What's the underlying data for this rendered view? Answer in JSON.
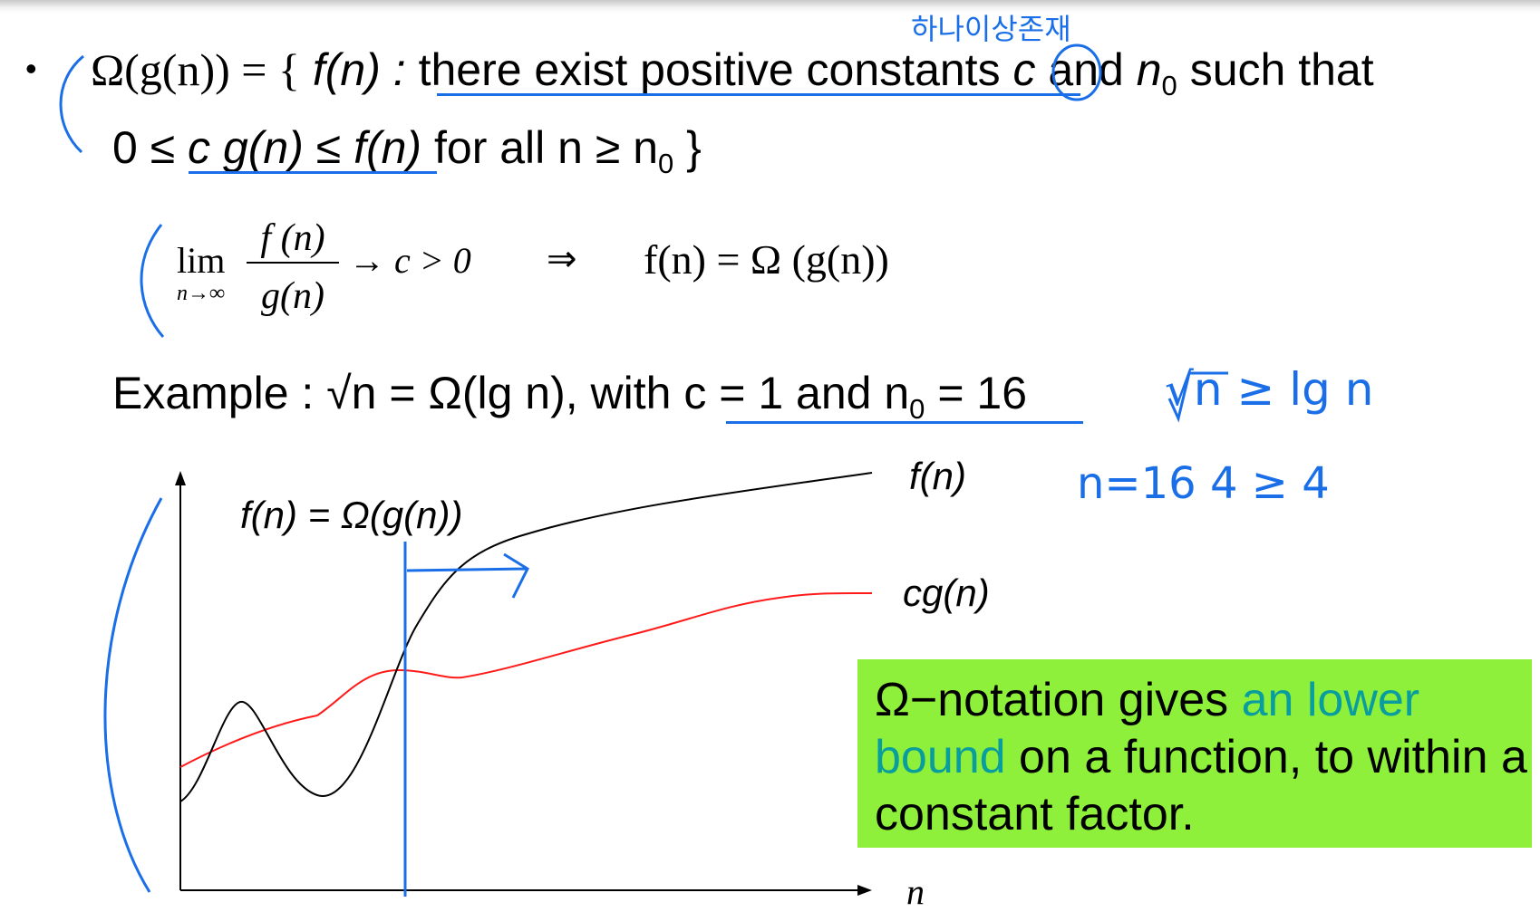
{
  "definition": {
    "bullet": "•",
    "omega_lhs": "Ω(g(n)) = {",
    "f_of_n": "f(n) :",
    "underlined_phrase": "there exist positive constants",
    "constant_c": "c",
    "and_text": "and",
    "n0_var": "n",
    "n0_sub": "0",
    "such_that": "such that",
    "line2_start": "0 ≤",
    "line2_inequality": "c g(n) ≤ f(n)",
    "line2_rest": "for all n ≥ n",
    "line2_sub": "0",
    "line2_end": "}"
  },
  "limit": {
    "lim": "lim",
    "lim_sub": "n→∞",
    "numerator": "f (n)",
    "denominator": "g(n)",
    "arrow_c": "→  c > 0",
    "implies": "⇒",
    "result": "f(n) = Ω (g(n))"
  },
  "example": {
    "prefix": "Example : √n  = Ω(lg n), with",
    "underlined": "c = 1 and n",
    "sub": "0",
    "tail": "= 16"
  },
  "handwriting": {
    "korean_note": "하나이상존재",
    "sqrt_note": "√n ≥ lg n",
    "check_note": "n=16  4 ≥ 4"
  },
  "graph": {
    "title": "f(n) = Ω(g(n))",
    "f_label": "f(n)",
    "cg_label": "cg(n)",
    "x_label": "n"
  },
  "callout": {
    "part1": "Ω−notation gives ",
    "highlight": "an lower bound",
    "part2": " on a function, to within a constant factor."
  },
  "colors": {
    "annotation_blue": "#1a6fe8",
    "callout_bg": "#8ef03a",
    "highlight_teal": "#0a9d9d",
    "cg_curve": "#ff1a1a"
  }
}
